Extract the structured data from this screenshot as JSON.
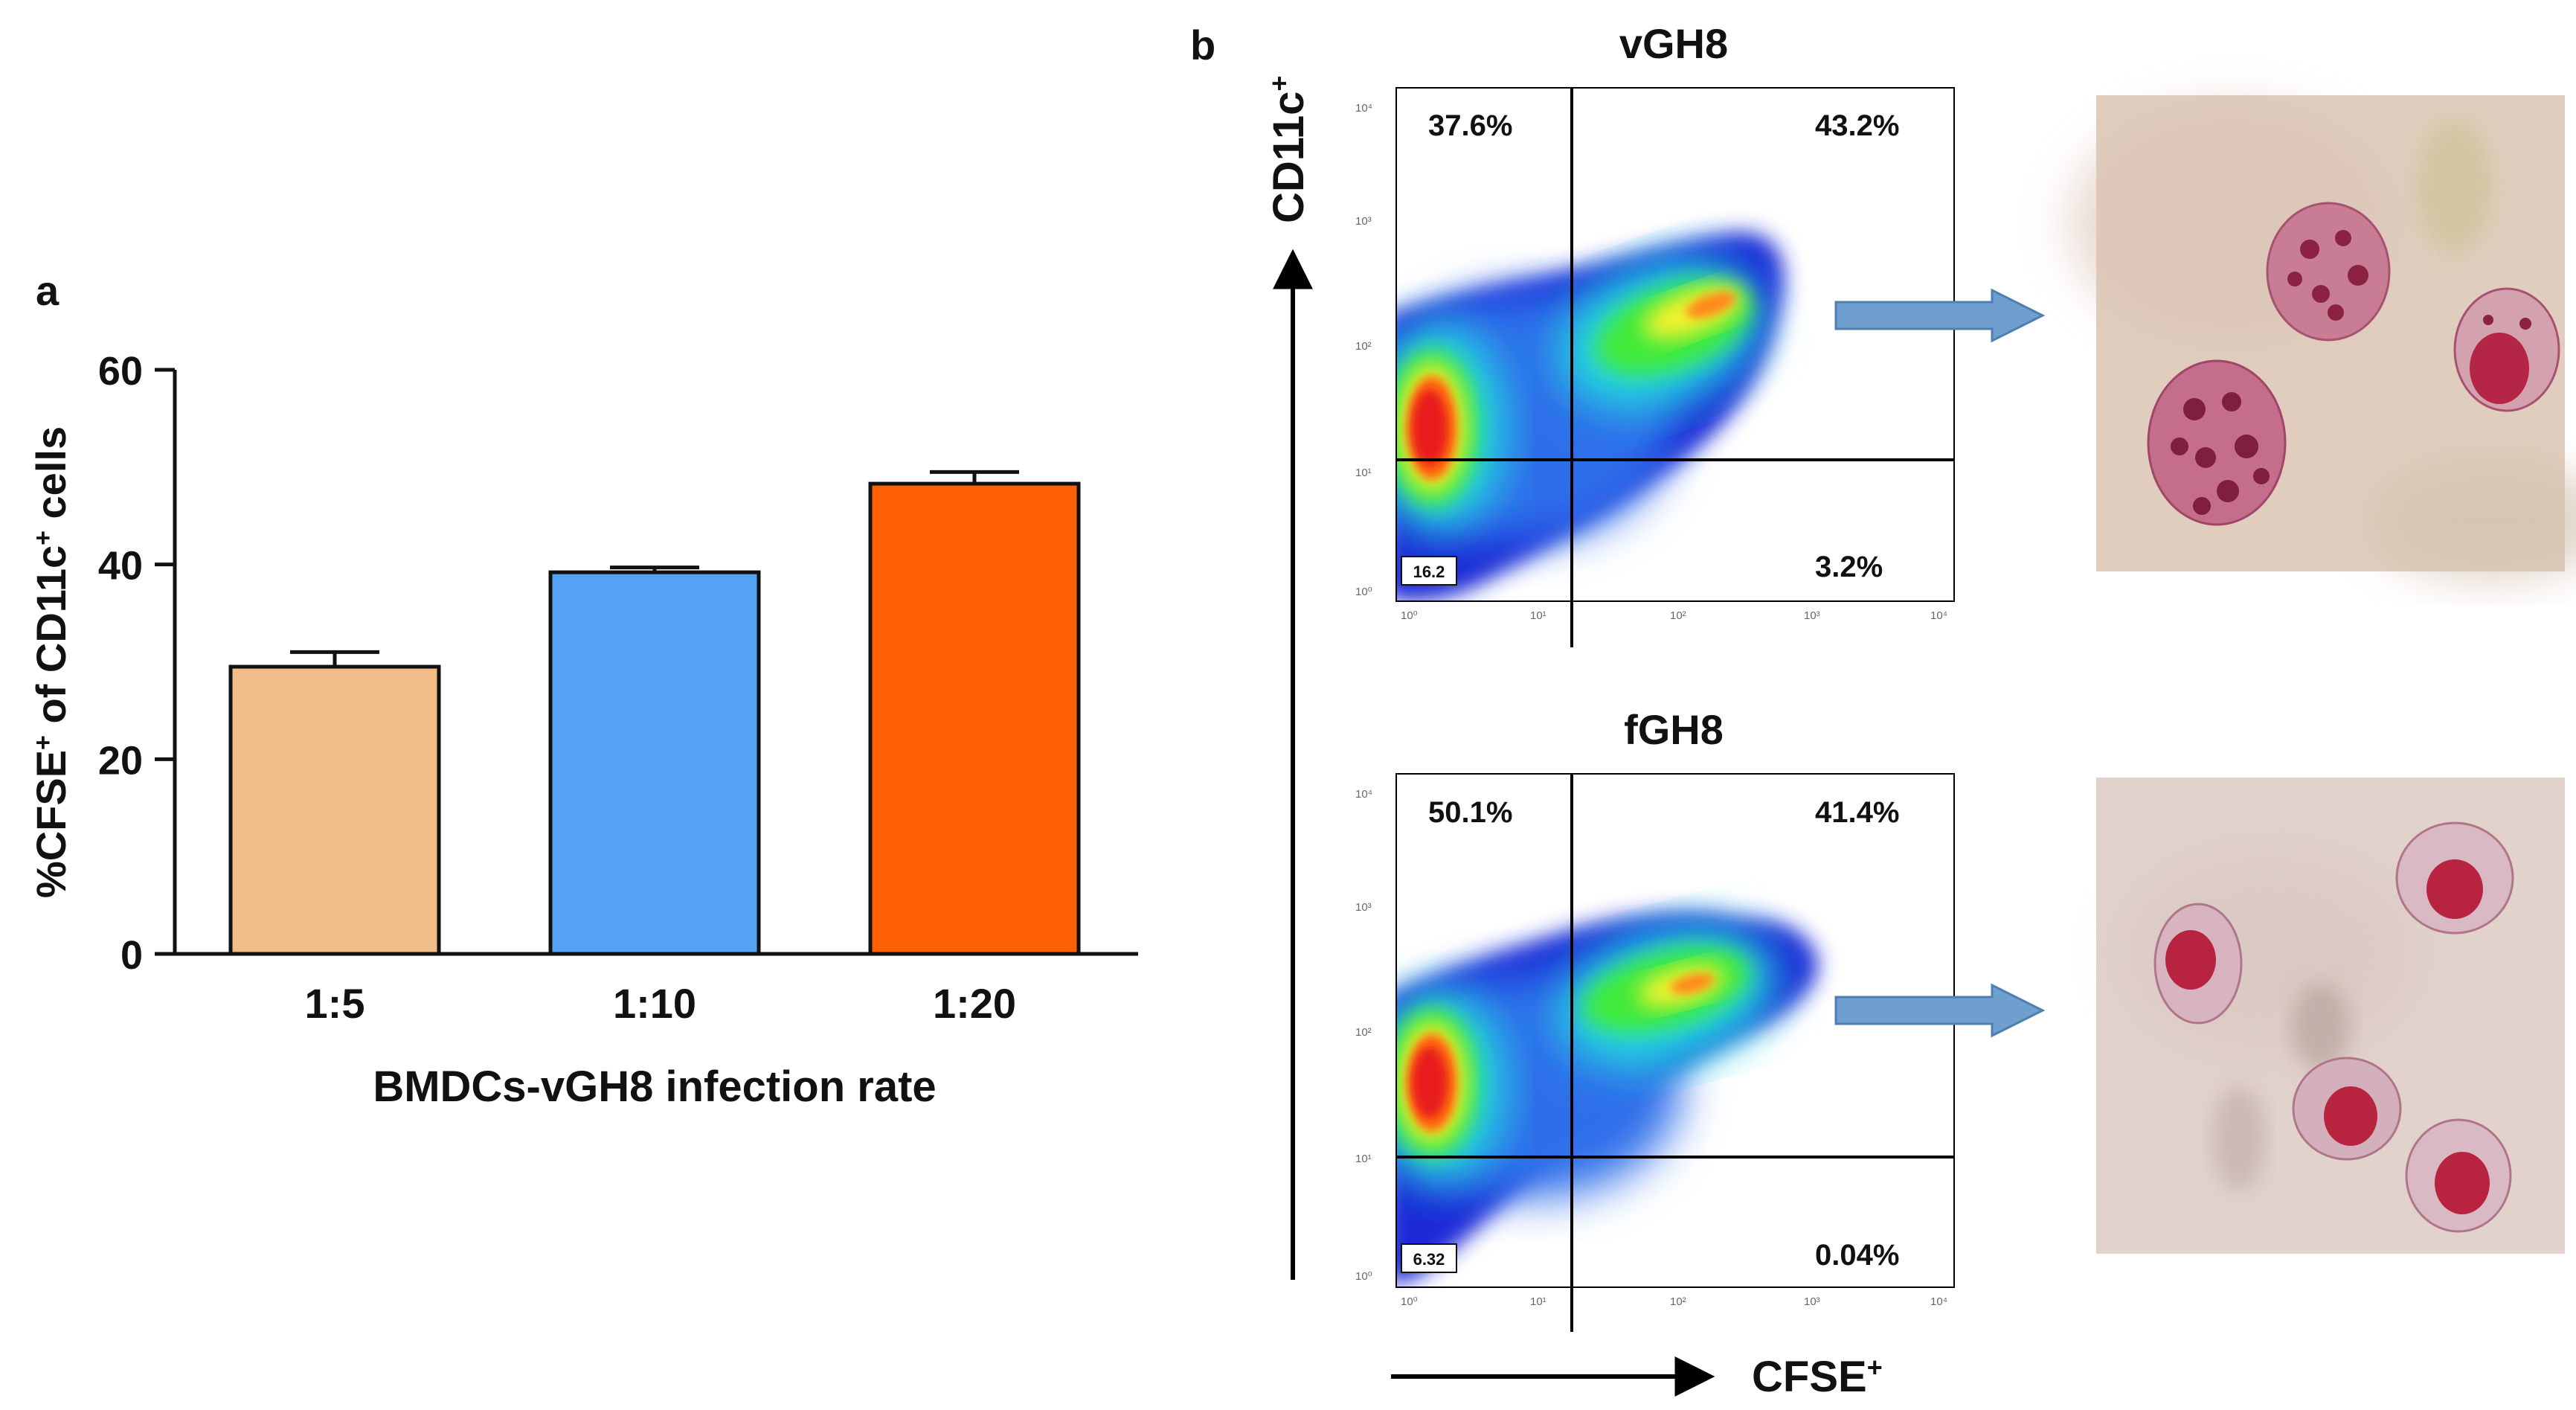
{
  "figure": {
    "panel_a": {
      "label": "a",
      "y_axis": {
        "label_parts": [
          "%CFSE",
          "+",
          " of CD11c",
          "+",
          " cells"
        ],
        "ticks": [
          "0",
          "20",
          "40",
          "60"
        ]
      },
      "x_axis_title": "BMDCs-vGH8 infection rate",
      "error_bars": [
        1.5,
        0.5,
        1.2
      ]
    },
    "panel_b": {
      "label": "b",
      "y_axis_label": "CD11c",
      "y_axis_sup": "+",
      "x_axis_label": "CFSE",
      "x_axis_sup": "+",
      "plots": [
        {
          "title": "vGH8",
          "quadrants": {
            "upper_left": "37.6%",
            "upper_right": "43.2%",
            "lower_right": "3.2%",
            "lower_left_box": "16.2"
          },
          "axis_ticks": [
            "10⁰",
            "10¹",
            "10²",
            "10³",
            "10⁴"
          ],
          "arrow": "right-arrow-icon",
          "micrograph": "stained-cells-micrograph"
        },
        {
          "title": "fGH8",
          "quadrants": {
            "upper_left": "50.1%",
            "upper_right": "41.4%",
            "lower_right": "0.04%",
            "lower_left_box": "6.32"
          },
          "axis_ticks": [
            "10⁰",
            "10¹",
            "10²",
            "10³",
            "10⁴"
          ],
          "arrow": "right-arrow-icon",
          "micrograph": "stained-cells-micrograph"
        }
      ]
    },
    "colors": {
      "bar_1_5": "#F2BC88",
      "bar_1_10": "#55A3F5",
      "bar_1_20": "#FF6006",
      "arrow": "#6E9FCE"
    }
  },
  "chart_data": [
    {
      "type": "bar",
      "title": "",
      "categories": [
        "1:5",
        "1:10",
        "1:20"
      ],
      "values": [
        29.5,
        39.2,
        48.3
      ],
      "errors": [
        1.5,
        0.5,
        1.2
      ],
      "xlabel": "BMDCs-vGH8 infection rate",
      "ylabel": "%CFSE+ of CD11c+ cells",
      "ylim": [
        0,
        60
      ],
      "yticks": [
        0,
        20,
        40,
        60
      ],
      "grid": false,
      "legend": "none"
    },
    {
      "type": "heatmap",
      "title": "vGH8",
      "xlabel": "CFSE+",
      "ylabel": "CD11c+",
      "x_scale": "log",
      "y_scale": "log",
      "xlim": [
        1,
        10000
      ],
      "ylim": [
        1,
        10000
      ],
      "quadrant_percentages": {
        "upper_left": 37.6,
        "upper_right": 43.2,
        "lower_right": 3.2,
        "lower_left": 16.2
      }
    },
    {
      "type": "heatmap",
      "title": "fGH8",
      "xlabel": "CFSE+",
      "ylabel": "CD11c+",
      "x_scale": "log",
      "y_scale": "log",
      "xlim": [
        1,
        10000
      ],
      "ylim": [
        1,
        10000
      ],
      "quadrant_percentages": {
        "upper_left": 50.1,
        "upper_right": 41.4,
        "lower_right": 0.04,
        "lower_left": 6.32
      }
    }
  ]
}
